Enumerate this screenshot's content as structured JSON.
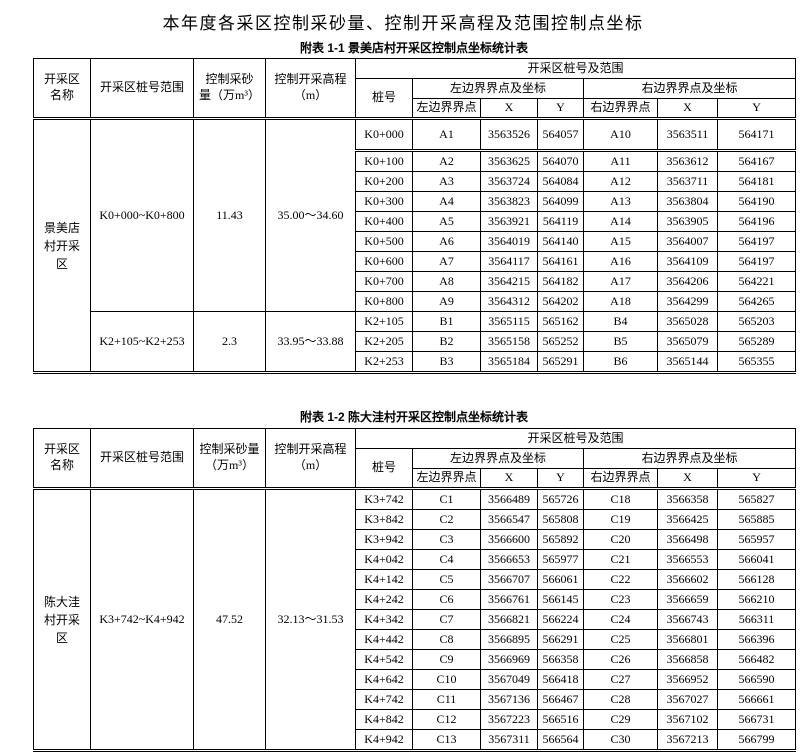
{
  "page": {
    "title": "本年度各采区控制采砂量、控制开采高程及范围控制点坐标"
  },
  "table1": {
    "caption": "附表 1-1 景美店村开采区控制点坐标统计表",
    "headers": {
      "area": "开采区\n名称",
      "range": "开采区桩号范围",
      "volume": "控制采砂\n量（万m³）",
      "elevation": "控制开采高程\n（m）",
      "span_group": "开采区桩号及范围",
      "stake": "桩号",
      "left_group": "左边界界点及坐标",
      "right_group": "右边界界点及坐标",
      "left_point": "左边界界点",
      "right_point": "右边界界点",
      "x": "X",
      "y": "Y"
    },
    "area_name": "景美店村开采区",
    "groups": [
      {
        "range": "K0+000~K0+800",
        "volume": "11.43",
        "elevation": "35.00～34.60",
        "row_count": 9
      },
      {
        "range": "K2+105~K2+253",
        "volume": "2.3",
        "elevation": "33.95～33.88",
        "row_count": 3
      }
    ],
    "rows": [
      [
        "K0+000",
        "A1",
        "3563526",
        "564057",
        "A10",
        "3563511",
        "564171"
      ],
      [
        "K0+100",
        "A2",
        "3563625",
        "564070",
        "A11",
        "3563612",
        "564167"
      ],
      [
        "K0+200",
        "A3",
        "3563724",
        "564084",
        "A12",
        "3563711",
        "564181"
      ],
      [
        "K0+300",
        "A4",
        "3563823",
        "564099",
        "A13",
        "3563804",
        "564190"
      ],
      [
        "K0+400",
        "A5",
        "3563921",
        "564119",
        "A14",
        "3563905",
        "564196"
      ],
      [
        "K0+500",
        "A6",
        "3564019",
        "564140",
        "A15",
        "3564007",
        "564197"
      ],
      [
        "K0+600",
        "A7",
        "3564117",
        "564161",
        "A16",
        "3564109",
        "564197"
      ],
      [
        "K0+700",
        "A8",
        "3564215",
        "564182",
        "A17",
        "3564206",
        "564221"
      ],
      [
        "K0+800",
        "A9",
        "3564312",
        "564202",
        "A18",
        "3564299",
        "564265"
      ],
      [
        "K2+105",
        "B1",
        "3565115",
        "565162",
        "B4",
        "3565028",
        "565203"
      ],
      [
        "K2+205",
        "B2",
        "3565158",
        "565252",
        "B5",
        "3565079",
        "565289"
      ],
      [
        "K2+253",
        "B3",
        "3565184",
        "565291",
        "B6",
        "3565144",
        "565355"
      ]
    ]
  },
  "table2": {
    "caption": "附表 1-2 陈大洼村开采区控制点坐标统计表",
    "headers": {
      "area": "开采区\n名称",
      "range": "开采区桩号范围",
      "volume": "控制采砂量\n（万m³）",
      "elevation": "控制开采高程\n（m）",
      "span_group": "开采区桩号及范围",
      "stake": "桩号",
      "left_group": "左边界界点及坐标",
      "right_group": "右边界界点及坐标",
      "left_point": "左边界界点",
      "right_point": "右边界界点",
      "x": "X",
      "y": "Y"
    },
    "area_name": "陈大洼村开采区",
    "groups": [
      {
        "range": "K3+742~K4+942",
        "volume": "47.52",
        "elevation": "32.13～31.53",
        "row_count": 13
      }
    ],
    "rows": [
      [
        "K3+742",
        "C1",
        "3566489",
        "565726",
        "C18",
        "3566358",
        "565827"
      ],
      [
        "K3+842",
        "C2",
        "3566547",
        "565808",
        "C19",
        "3566425",
        "565885"
      ],
      [
        "K3+942",
        "C3",
        "3566600",
        "565892",
        "C20",
        "3566498",
        "565957"
      ],
      [
        "K4+042",
        "C4",
        "3566653",
        "565977",
        "C21",
        "3566553",
        "566041"
      ],
      [
        "K4+142",
        "C5",
        "3566707",
        "566061",
        "C22",
        "3566602",
        "566128"
      ],
      [
        "K4+242",
        "C6",
        "3566761",
        "566145",
        "C23",
        "3566659",
        "566210"
      ],
      [
        "K4+342",
        "C7",
        "3566821",
        "566224",
        "C24",
        "3566743",
        "566311"
      ],
      [
        "K4+442",
        "C8",
        "3566895",
        "566291",
        "C25",
        "3566801",
        "566396"
      ],
      [
        "K4+542",
        "C9",
        "3566969",
        "566358",
        "C26",
        "3566858",
        "566482"
      ],
      [
        "K4+642",
        "C10",
        "3567049",
        "566418",
        "C27",
        "3566952",
        "566590"
      ],
      [
        "K4+742",
        "C11",
        "3567136",
        "566467",
        "C28",
        "3567027",
        "566661"
      ],
      [
        "K4+842",
        "C12",
        "3567223",
        "566516",
        "C29",
        "3567102",
        "566731"
      ],
      [
        "K4+942",
        "C13",
        "3567311",
        "566564",
        "C30",
        "3567213",
        "566799"
      ]
    ]
  }
}
